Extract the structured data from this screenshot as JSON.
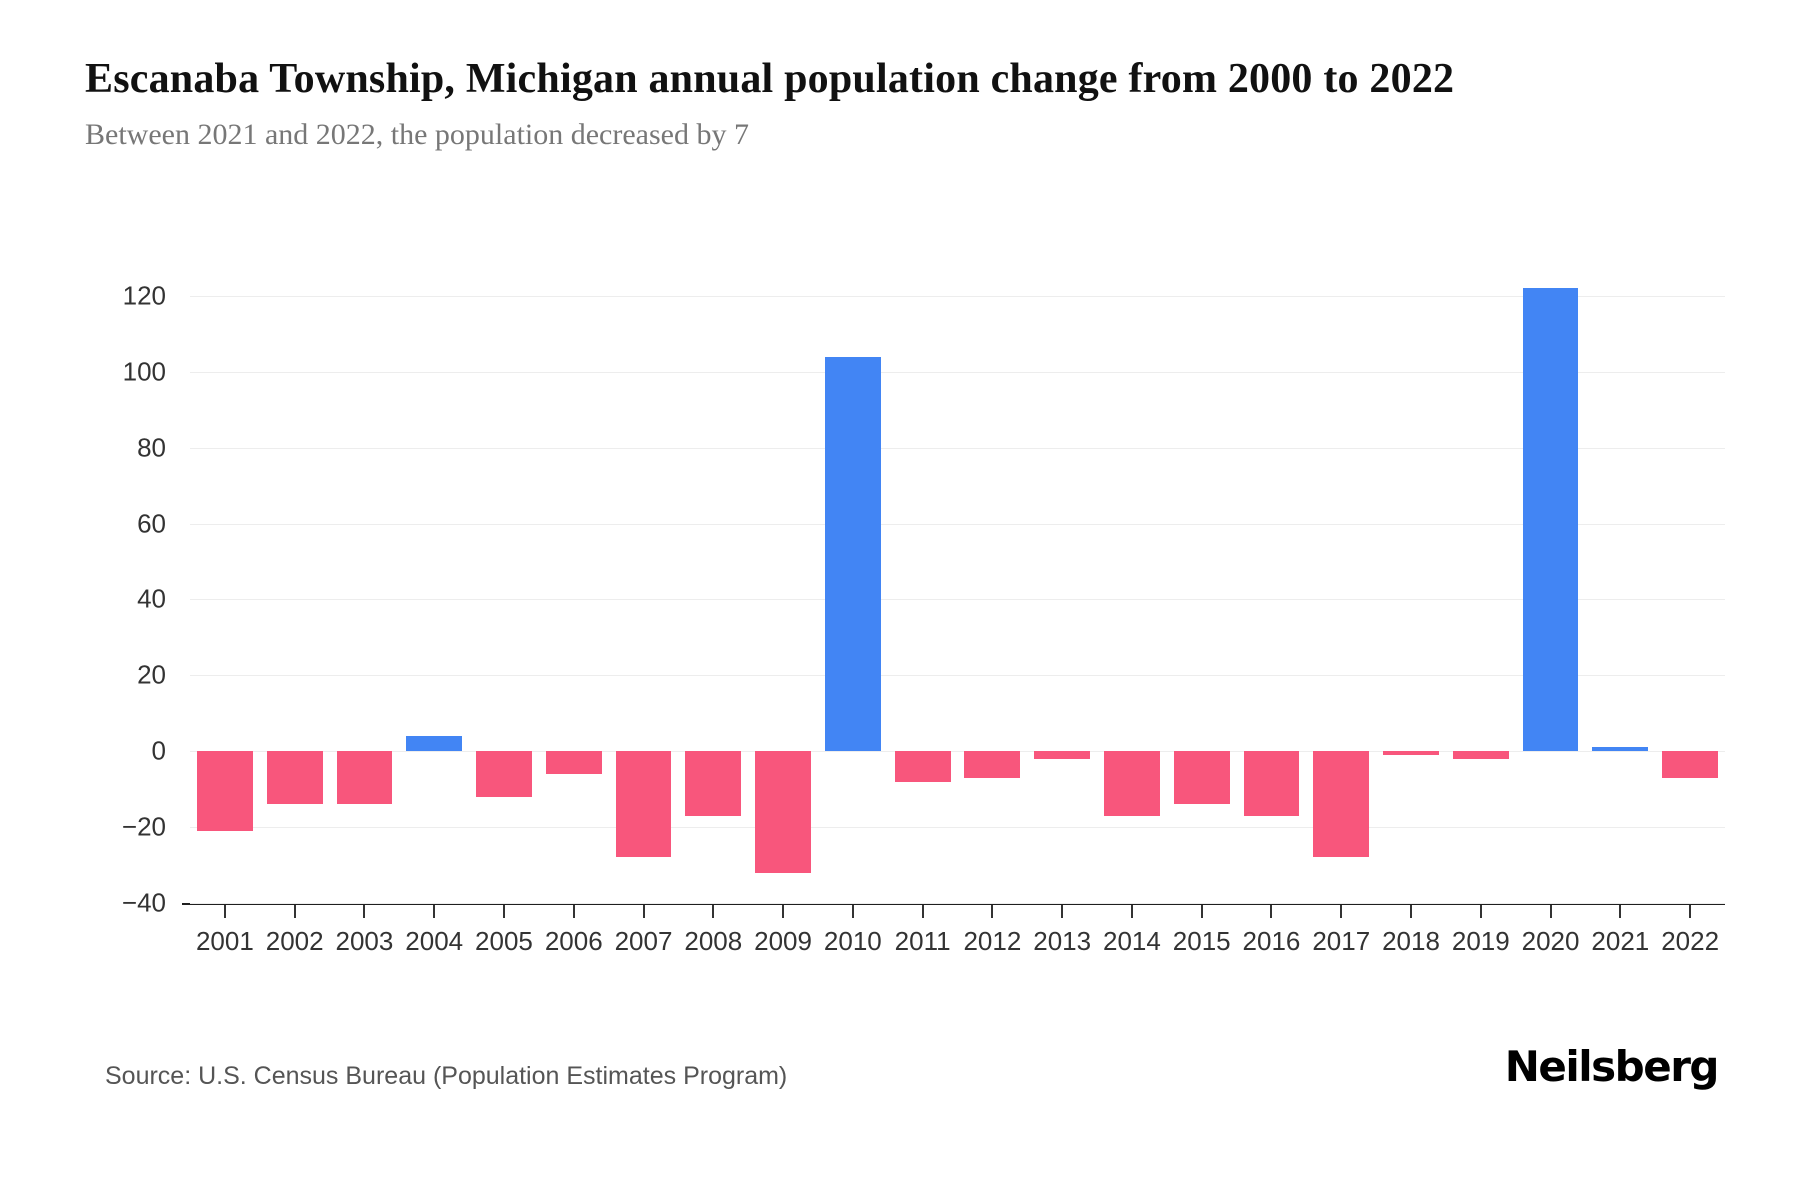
{
  "chart_data": {
    "type": "bar",
    "title": "Escanaba Township, Michigan annual population change from 2000 to 2022",
    "subtitle": "Between 2021 and 2022, the population decreased by 7",
    "categories": [
      "2001",
      "2002",
      "2003",
      "2004",
      "2005",
      "2006",
      "2007",
      "2008",
      "2009",
      "2010",
      "2011",
      "2012",
      "2013",
      "2014",
      "2015",
      "2016",
      "2017",
      "2018",
      "2019",
      "2020",
      "2021",
      "2022"
    ],
    "values": [
      -21,
      -14,
      -14,
      4,
      -12,
      -6,
      -28,
      -17,
      -32,
      104,
      -8,
      -7,
      -2,
      -17,
      -14,
      -17,
      -28,
      -1,
      -2,
      122,
      1,
      -7
    ],
    "positive_color": "#4285F4",
    "negative_color": "#F8567C",
    "xlabel": "",
    "ylabel": "",
    "ylim": [
      -40,
      130
    ],
    "yticks": [
      -40,
      -20,
      0,
      20,
      40,
      60,
      80,
      100,
      120
    ],
    "grid": true,
    "legend": "none",
    "source_note": "Source: U.S. Census Bureau (Population Estimates Program)",
    "brand": "Neilsberg"
  }
}
